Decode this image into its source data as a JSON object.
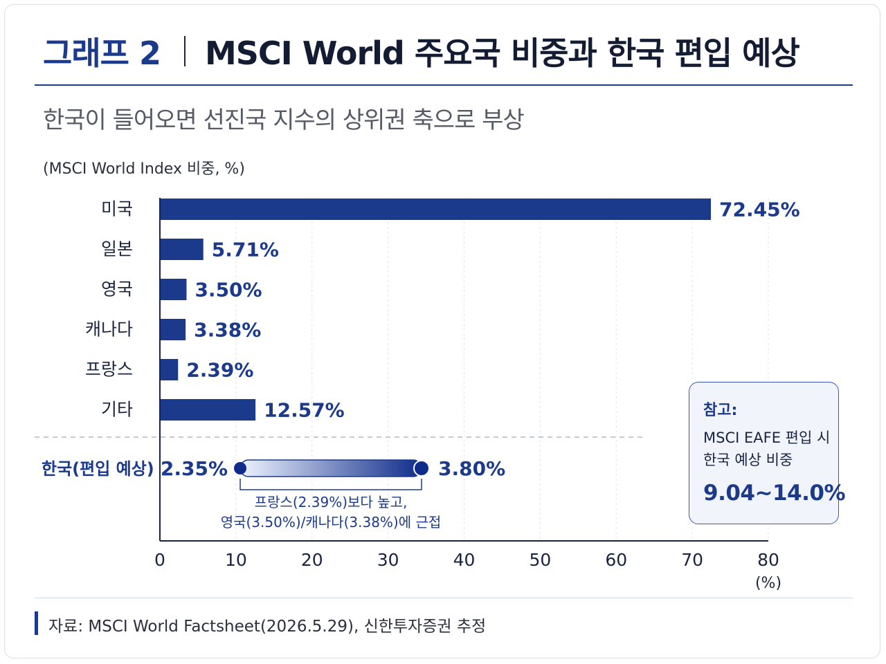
{
  "header": {
    "figure_label": "그래프 2",
    "title": "MSCI World 주요국 비중과 한국 편입 예상",
    "subtitle": "한국이 들어오면 선진국 지수의 상위권 축으로 부상",
    "unit_label": "(MSCI World Index 비중, %)"
  },
  "chart_data": {
    "type": "bar",
    "orientation": "horizontal",
    "categories": [
      "미국",
      "일본",
      "영국",
      "캐나다",
      "프랑스",
      "기타"
    ],
    "values": [
      72.45,
      5.71,
      3.5,
      3.38,
      2.39,
      12.57
    ],
    "value_labels": [
      "72.45%",
      "5.71%",
      "3.50%",
      "3.38%",
      "2.39%",
      "12.57%"
    ],
    "xlim": [
      0,
      80
    ],
    "xticks": [
      "0",
      "10",
      "20",
      "30",
      "40",
      "50",
      "60",
      "70",
      "80"
    ],
    "x_unit": "(%)",
    "grid": "vertical dashed",
    "bar_color": "#1b3a8c",
    "range": {
      "label": "한국(편입 예상)",
      "low": 2.35,
      "high": 3.8,
      "low_label": "2.35%",
      "high_label": "3.80%",
      "annotation_line1": "프랑스(2.39%)보다 높고,",
      "annotation_line2": "영국(3.50%)/캐나다(3.38%)에 근접",
      "color_light": "#eef3ff",
      "color_dark": "#0f2c8a"
    }
  },
  "note": {
    "heading": "참고:",
    "line1": "MSCI EAFE 편입 시",
    "line2": "한국 예상 비중",
    "value": "9.04~14.0%"
  },
  "footer": {
    "source": "자료: MSCI World Factsheet(2026.5.29), 신한투자증권 추정"
  }
}
